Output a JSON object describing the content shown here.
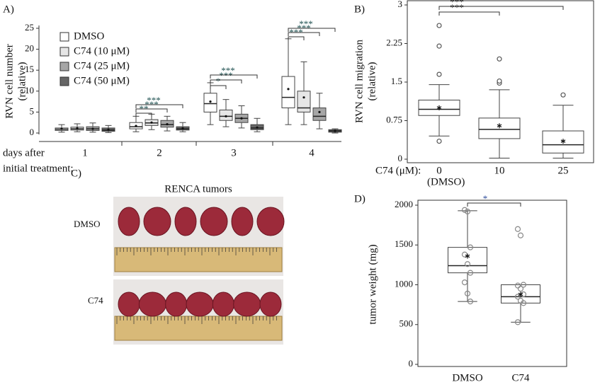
{
  "chart_data": [
    {
      "type": "box",
      "label": "A)",
      "ylabel": [
        "RVN cell number",
        "(relative)"
      ],
      "xlabel": [
        "days after",
        "initial treatment:"
      ],
      "categories": [
        "1",
        "2",
        "3",
        "4"
      ],
      "ylim": [
        0,
        25
      ],
      "yticks": [
        0,
        5,
        10,
        15,
        20,
        25
      ],
      "series": [
        {
          "name": "DMSO",
          "color": "#ffffff",
          "boxes": [
            {
              "min": 0.2,
              "q1": 0.6,
              "median": 0.9,
              "q3": 1.2,
              "max": 2,
              "mean": 1
            },
            {
              "min": 0.3,
              "q1": 1,
              "median": 1.5,
              "q3": 2.5,
              "max": 4,
              "mean": 1.7
            },
            {
              "min": 2,
              "q1": 5,
              "median": 7,
              "q3": 9.5,
              "max": 12,
              "mean": 7.5
            },
            {
              "min": 2,
              "q1": 6,
              "median": 8.5,
              "q3": 13.5,
              "max": 22.5,
              "mean": 10.5
            }
          ]
        },
        {
          "name": "C74 (10 μM)",
          "color": "#e6e6e6",
          "boxes": [
            {
              "min": 0.3,
              "q1": 0.7,
              "median": 1,
              "q3": 1.4,
              "max": 2.2,
              "mean": 1.1
            },
            {
              "min": 0.8,
              "q1": 1.8,
              "median": 2.4,
              "q3": 3.2,
              "max": 4.5,
              "mean": 2.5
            },
            {
              "min": 1.5,
              "q1": 3,
              "median": 4,
              "q3": 5.5,
              "max": 8,
              "mean": 4
            },
            {
              "min": 2,
              "q1": 5,
              "median": 6,
              "q3": 10,
              "max": 17,
              "mean": 8.5
            }
          ]
        },
        {
          "name": "C74 (25 μM)",
          "color": "#a6a6a6",
          "boxes": [
            {
              "min": 0.2,
              "q1": 0.6,
              "median": 1,
              "q3": 1.5,
              "max": 2.4,
              "mean": 1
            },
            {
              "min": 0.5,
              "q1": 1.4,
              "median": 2,
              "q3": 3,
              "max": 4,
              "mean": 2.1
            },
            {
              "min": 1.2,
              "q1": 2.5,
              "median": 3.5,
              "q3": 4.5,
              "max": 6.5,
              "mean": 3.5
            },
            {
              "min": 1,
              "q1": 3,
              "median": 4,
              "q3": 6,
              "max": 9.5,
              "mean": 5
            }
          ]
        },
        {
          "name": "C74 (50 μM)",
          "color": "#666666",
          "boxes": [
            {
              "min": 0.1,
              "q1": 0.4,
              "median": 0.7,
              "q3": 1.2,
              "max": 1.8,
              "mean": 0.8
            },
            {
              "min": 0.3,
              "q1": 0.7,
              "median": 1,
              "q3": 1.5,
              "max": 2.5,
              "mean": 1.1
            },
            {
              "min": 0.3,
              "q1": 0.8,
              "median": 1.2,
              "q3": 2,
              "max": 3.5,
              "mean": 1.3
            },
            {
              "min": 0,
              "q1": 0.2,
              "median": 0.5,
              "q3": 0.8,
              "max": 1,
              "mean": 0.5
            }
          ]
        }
      ],
      "annotations": [
        {
          "text": "**"
        },
        {
          "text": "***"
        },
        {
          "text": "***"
        },
        {
          "text": "*"
        },
        {
          "text": "***"
        },
        {
          "text": "***"
        },
        {
          "text": "***"
        },
        {
          "text": "***"
        },
        {
          "text": "***"
        }
      ]
    },
    {
      "type": "box",
      "label": "B)",
      "ylabel": [
        "RVN cell migration",
        "(relative)"
      ],
      "xlabel": "C74 (μM):",
      "note": "(DMSO)",
      "categories": [
        "0",
        "10",
        "25"
      ],
      "ylim": [
        0,
        3
      ],
      "yticks": [
        0,
        0.75,
        1.5,
        2.25,
        3
      ],
      "color": "#ffffff",
      "boxes": [
        {
          "min": 0.45,
          "q1": 0.85,
          "median": 0.97,
          "q3": 1.15,
          "max": 1.45,
          "mean": 1,
          "outliers": [
            0.35,
            1.65,
            2.2,
            2.6
          ]
        },
        {
          "min": 0.02,
          "q1": 0.4,
          "median": 0.58,
          "q3": 0.8,
          "max": 1.35,
          "mean": 0.65,
          "outliers": [
            1.48,
            1.52,
            1.95
          ]
        },
        {
          "min": 0.02,
          "q1": 0.12,
          "median": 0.28,
          "q3": 0.55,
          "max": 1.05,
          "mean": 0.35,
          "outliers": [
            1.25
          ]
        }
      ],
      "annotations": [
        {
          "text": "***"
        },
        {
          "text": "***"
        }
      ]
    },
    {
      "type": "photo",
      "label": "C)",
      "title": "RENCA tumors",
      "rows": [
        "DMSO",
        "C74"
      ]
    },
    {
      "type": "box",
      "label": "D)",
      "ylabel": "tumor weight (mg)",
      "categories": [
        "DMSO",
        "C74"
      ],
      "ylim": [
        0,
        2000
      ],
      "yticks": [
        0,
        500,
        1000,
        1500,
        2000
      ],
      "color": "#ffffff",
      "boxes": [
        {
          "min": 790,
          "q1": 1150,
          "median": 1240,
          "q3": 1470,
          "max": 1930,
          "mean": 1360,
          "points": [
            1940,
            1920,
            1470,
            1380,
            1260,
            1150,
            1030,
            890,
            790
          ]
        },
        {
          "min": 530,
          "q1": 770,
          "median": 850,
          "q3": 1000,
          "max": 1000,
          "mean": 880,
          "points": [
            1700,
            1620,
            1000,
            990,
            950,
            880,
            850,
            800,
            770,
            530
          ]
        }
      ],
      "annotations": [
        {
          "text": "*"
        }
      ]
    }
  ]
}
